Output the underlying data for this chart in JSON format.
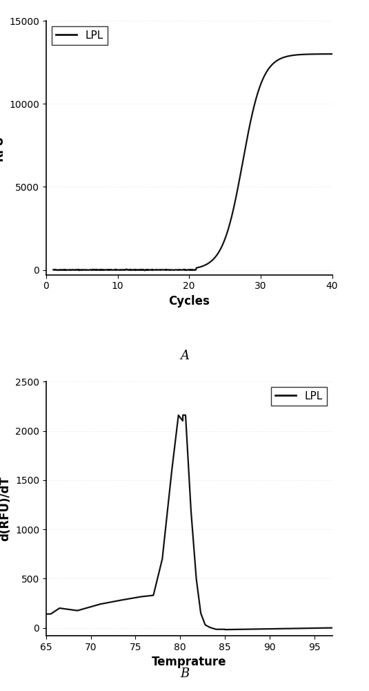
{
  "chart_a": {
    "xlabel": "Cycles",
    "ylabel": "RFU",
    "xlim": [
      0,
      40
    ],
    "ylim": [
      -300,
      15000
    ],
    "xticks": [
      0,
      10,
      20,
      30,
      40
    ],
    "yticks": [
      0,
      5000,
      10000,
      15000
    ],
    "legend_label": "LPL",
    "legend_loc": "upper left",
    "sigmoid_L": 13000,
    "sigmoid_k": 0.72,
    "sigmoid_x0": 27.5,
    "x_start": 1,
    "x_end": 40,
    "label_A": "A"
  },
  "chart_b": {
    "xlabel": "Temprature",
    "ylabel": "d(RFU)/dT",
    "xlim": [
      65,
      97
    ],
    "ylim": [
      -80,
      2500
    ],
    "xticks": [
      65,
      70,
      75,
      80,
      85,
      90,
      95
    ],
    "yticks": [
      0,
      500,
      1000,
      1500,
      2000,
      2500
    ],
    "legend_label": "LPL",
    "legend_loc": "upper right",
    "label_B": "B"
  },
  "line_color": "#111111",
  "line_width": 1.6,
  "background_color": "#ffffff",
  "tick_label_fontsize": 10,
  "axis_label_fontsize": 12,
  "legend_fontsize": 11,
  "label_fontsize": 13
}
